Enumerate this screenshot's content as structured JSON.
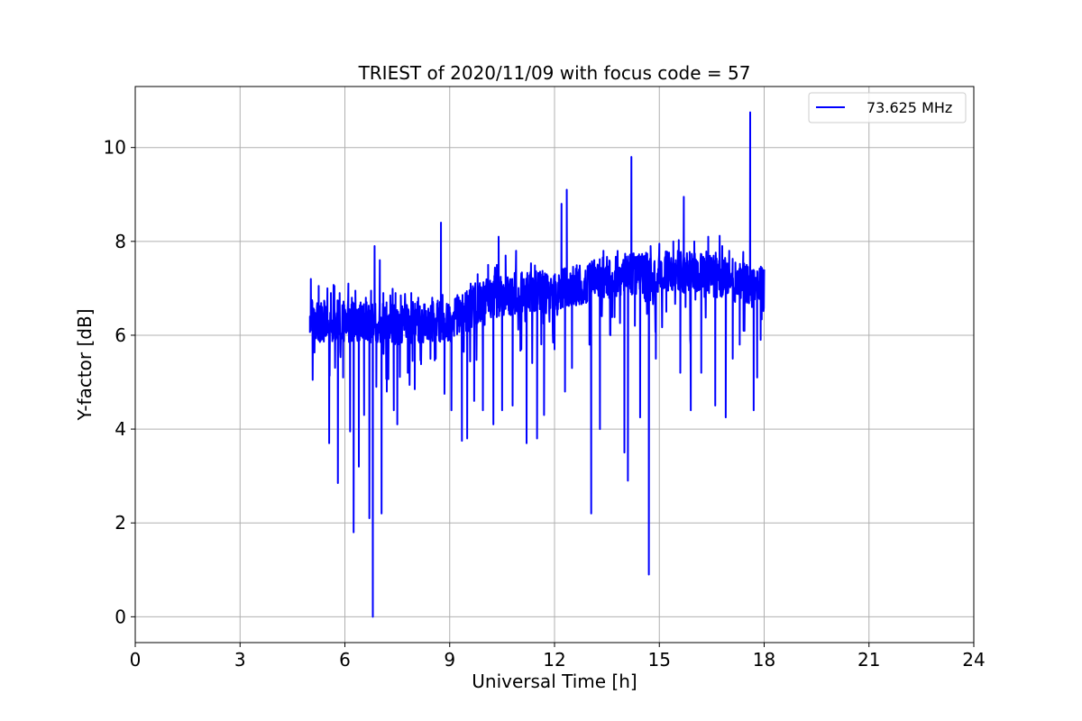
{
  "chart_data": {
    "type": "line",
    "title": "TRIEST of 2020/11/09 with focus code = 57",
    "xlabel": "Universal Time [h]",
    "ylabel": "Y-factor [dB]",
    "xlim": [
      0,
      24
    ],
    "ylim": [
      -0.55,
      11.3
    ],
    "xticks": [
      0,
      3,
      6,
      9,
      12,
      15,
      18,
      21,
      24
    ],
    "yticks": [
      0,
      2,
      4,
      6,
      8,
      10
    ],
    "grid": true,
    "legend_position": "top-right",
    "colors": {
      "series": "#0000ff",
      "grid": "#b0b0b0"
    },
    "series": [
      {
        "name": "73.625 MHz",
        "x_range": [
          5.0,
          18.0
        ],
        "baseline": [
          [
            5.0,
            6.3
          ],
          [
            6.0,
            6.3
          ],
          [
            7.5,
            6.25
          ],
          [
            9.0,
            6.3
          ],
          [
            10.0,
            6.8
          ],
          [
            11.0,
            6.9
          ],
          [
            12.0,
            6.95
          ],
          [
            13.0,
            7.15
          ],
          [
            14.0,
            7.3
          ],
          [
            15.0,
            7.35
          ],
          [
            16.0,
            7.35
          ],
          [
            17.0,
            7.2
          ],
          [
            18.0,
            7.0
          ]
        ],
        "points": [
          [
            5.0,
            6.4
          ],
          [
            5.02,
            6.1
          ],
          [
            5.12,
            6.3
          ],
          [
            5.25,
            7.05
          ],
          [
            5.45,
            6.0
          ],
          [
            5.5,
            7.0
          ],
          [
            5.55,
            3.7
          ],
          [
            5.6,
            6.9
          ],
          [
            5.7,
            7.05
          ],
          [
            5.8,
            2.85
          ],
          [
            5.85,
            6.9
          ],
          [
            5.95,
            5.1
          ],
          [
            6.1,
            7.1
          ],
          [
            6.15,
            3.95
          ],
          [
            6.2,
            6.8
          ],
          [
            6.25,
            1.8
          ],
          [
            6.3,
            6.95
          ],
          [
            6.4,
            3.2
          ],
          [
            6.45,
            6.7
          ],
          [
            6.55,
            4.3
          ],
          [
            6.6,
            6.8
          ],
          [
            6.7,
            2.1
          ],
          [
            6.75,
            6.95
          ],
          [
            6.8,
            0.0
          ],
          [
            6.85,
            7.9
          ],
          [
            6.9,
            4.9
          ],
          [
            7.0,
            7.6
          ],
          [
            7.05,
            2.2
          ],
          [
            7.1,
            6.9
          ],
          [
            7.2,
            4.8
          ],
          [
            7.3,
            6.85
          ],
          [
            7.4,
            4.4
          ],
          [
            7.45,
            6.9
          ],
          [
            7.5,
            4.1
          ],
          [
            7.6,
            6.85
          ],
          [
            7.8,
            5.2
          ],
          [
            7.9,
            6.9
          ],
          [
            8.0,
            4.85
          ],
          [
            8.1,
            6.8
          ],
          [
            8.3,
            6.0
          ],
          [
            8.5,
            6.8
          ],
          [
            8.6,
            5.5
          ],
          [
            8.75,
            8.4
          ],
          [
            8.8,
            6.4
          ],
          [
            8.85,
            4.75
          ],
          [
            9.0,
            6.6
          ],
          [
            9.05,
            4.4
          ],
          [
            9.2,
            6.8
          ],
          [
            9.35,
            3.75
          ],
          [
            9.45,
            6.9
          ],
          [
            9.5,
            3.8
          ],
          [
            9.6,
            7.1
          ],
          [
            9.7,
            4.6
          ],
          [
            9.8,
            7.3
          ],
          [
            9.95,
            4.4
          ],
          [
            10.1,
            7.5
          ],
          [
            10.25,
            4.1
          ],
          [
            10.35,
            7.5
          ],
          [
            10.4,
            8.1
          ],
          [
            10.5,
            4.4
          ],
          [
            10.6,
            7.7
          ],
          [
            10.8,
            4.5
          ],
          [
            10.9,
            7.8
          ],
          [
            11.05,
            5.7
          ],
          [
            11.2,
            3.7
          ],
          [
            11.3,
            7.3
          ],
          [
            11.5,
            3.8
          ],
          [
            11.6,
            7.3
          ],
          [
            11.7,
            4.3
          ],
          [
            11.9,
            7.2
          ],
          [
            12.0,
            5.7
          ],
          [
            12.2,
            8.8
          ],
          [
            12.3,
            4.8
          ],
          [
            12.35,
            9.1
          ],
          [
            12.5,
            5.3
          ],
          [
            12.7,
            7.4
          ],
          [
            13.0,
            5.8
          ],
          [
            13.05,
            2.2
          ],
          [
            13.1,
            7.5
          ],
          [
            13.3,
            4.0
          ],
          [
            13.4,
            7.8
          ],
          [
            13.6,
            6.0
          ],
          [
            13.8,
            7.6
          ],
          [
            14.0,
            3.5
          ],
          [
            14.1,
            2.9
          ],
          [
            14.2,
            9.8
          ],
          [
            14.3,
            6.2
          ],
          [
            14.45,
            4.25
          ],
          [
            14.6,
            7.7
          ],
          [
            14.7,
            0.9
          ],
          [
            14.75,
            7.9
          ],
          [
            14.9,
            5.5
          ],
          [
            15.0,
            7.95
          ],
          [
            15.2,
            6.5
          ],
          [
            15.4,
            8.0
          ],
          [
            15.6,
            5.2
          ],
          [
            15.7,
            8.95
          ],
          [
            15.75,
            6.6
          ],
          [
            15.9,
            4.4
          ],
          [
            16.0,
            8.0
          ],
          [
            16.2,
            5.2
          ],
          [
            16.4,
            8.1
          ],
          [
            16.6,
            4.5
          ],
          [
            16.8,
            7.9
          ],
          [
            16.9,
            4.25
          ],
          [
            17.0,
            7.8
          ],
          [
            17.1,
            5.5
          ],
          [
            17.3,
            5.8
          ],
          [
            17.5,
            7.5
          ],
          [
            17.6,
            10.75
          ],
          [
            17.65,
            6.6
          ],
          [
            17.7,
            4.4
          ],
          [
            17.8,
            5.1
          ],
          [
            17.9,
            5.9
          ],
          [
            17.95,
            7.4
          ],
          [
            18.0,
            7.4
          ]
        ]
      }
    ]
  }
}
